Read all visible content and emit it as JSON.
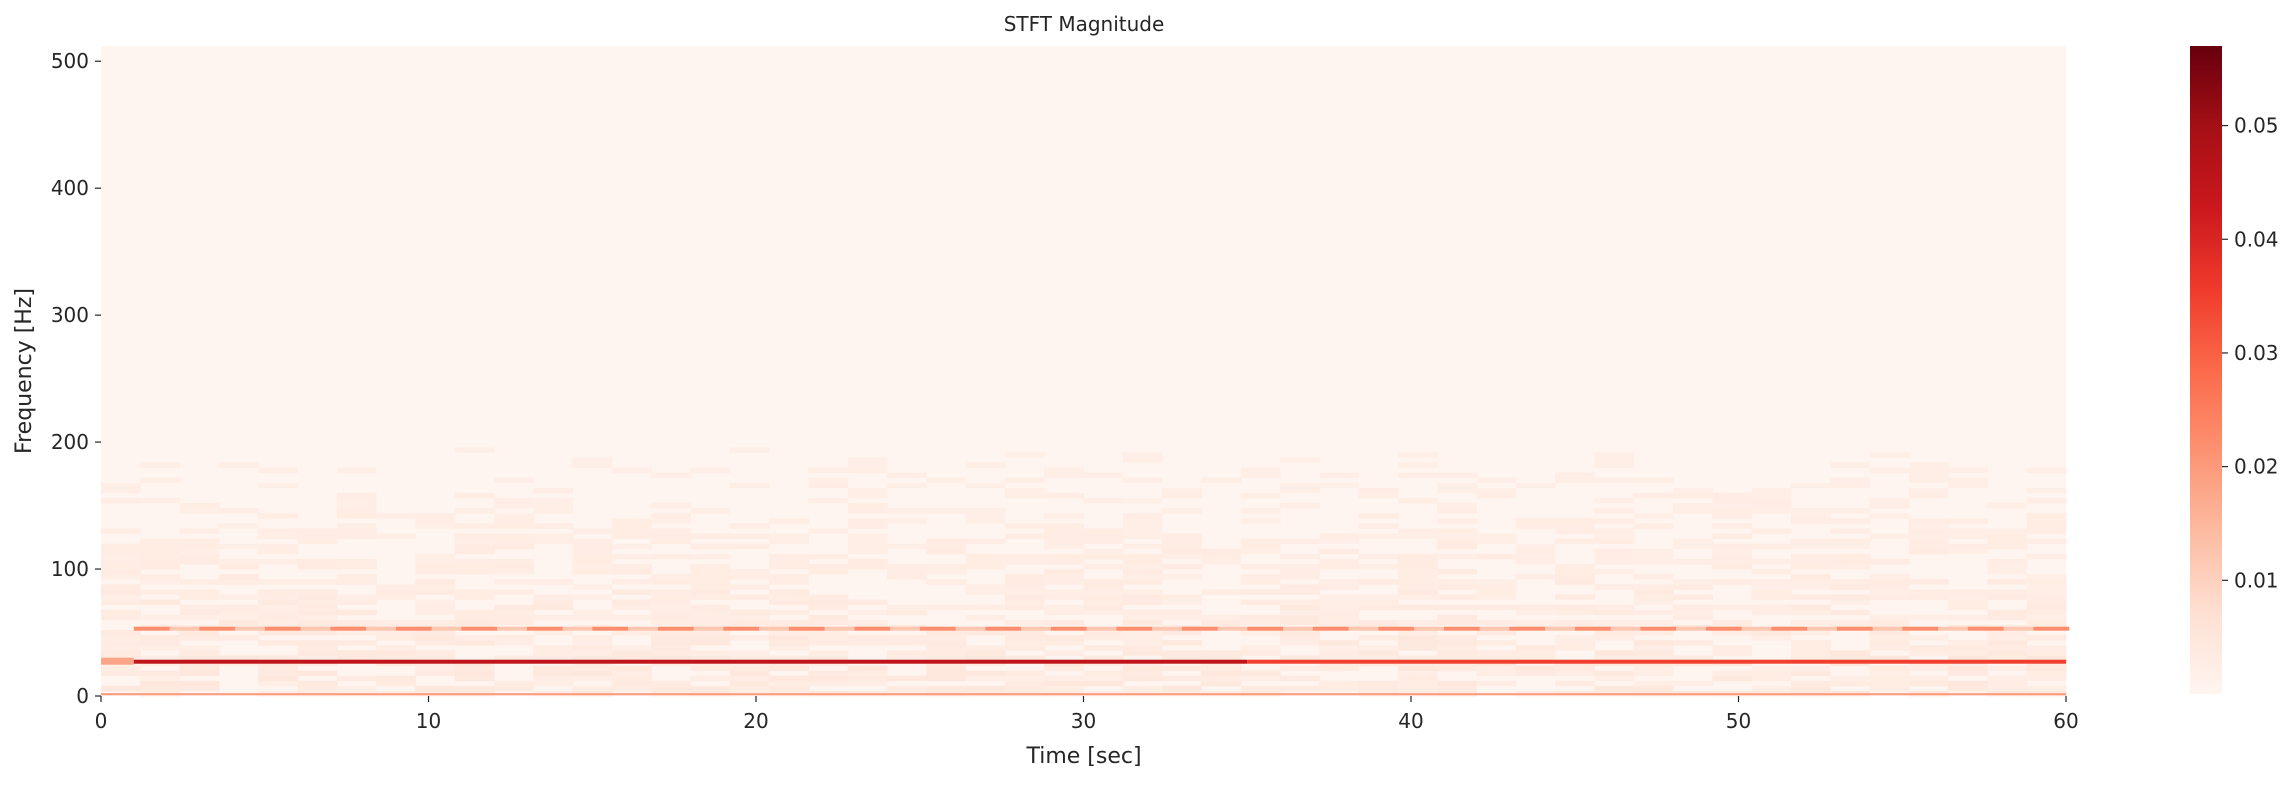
{
  "chart_data": {
    "type": "heatmap",
    "title": "STFT Magnitude",
    "xlabel": "Time [sec]",
    "ylabel": "Frequency [Hz]",
    "xlim": [
      0,
      60
    ],
    "ylim": [
      0,
      512
    ],
    "x_ticks": [
      0,
      10,
      20,
      30,
      40,
      50,
      60
    ],
    "y_ticks": [
      0,
      100,
      200,
      300,
      400,
      500
    ],
    "colormap": "Reds",
    "colorbar": {
      "range": [
        0,
        0.057
      ],
      "ticks": [
        0.01,
        0.02,
        0.03,
        0.04,
        0.05
      ],
      "tick_labels": [
        "0.01",
        "0.02",
        "0.03",
        "0.04",
        "0.05"
      ]
    },
    "grid": false,
    "background_level": 0.001,
    "bands": [
      {
        "freq": 1,
        "value": 0.02
      },
      {
        "freq": 27,
        "value": 0.045,
        "strong_end": 35,
        "value_after": 0.035
      },
      {
        "freq": 53,
        "value": 0.022,
        "dashed": true
      }
    ]
  }
}
